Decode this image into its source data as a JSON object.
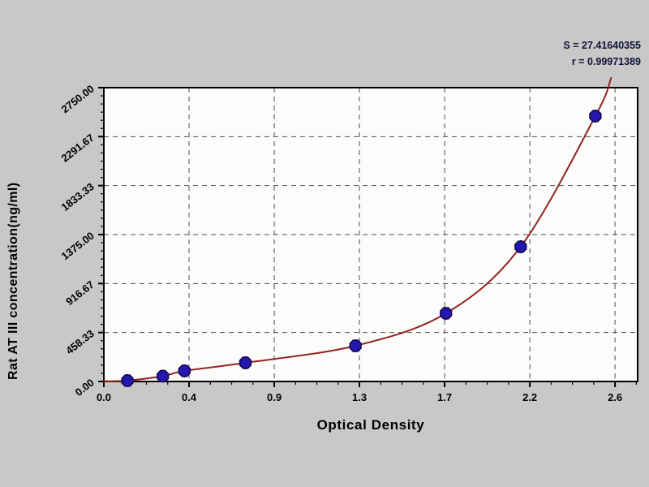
{
  "chart_data": {
    "type": "scatter",
    "title": "",
    "xlabel": "Optical Density",
    "ylabel": "Rat AT III concentration(ng/ml)",
    "annotation": {
      "s_line": "S = 27.41640355",
      "r_line": "r = 0.99971389"
    },
    "xlim": [
      0,
      2.715
    ],
    "ylim": [
      0,
      2750
    ],
    "x_ticks": {
      "values": [
        0,
        0.43333,
        0.86667,
        1.3,
        1.73333,
        2.16667,
        2.6
      ],
      "labels": [
        "0.0",
        "0.4",
        "0.9",
        "1.3",
        "1.7",
        "2.2",
        "2.6"
      ],
      "minor_divisions": 4
    },
    "y_ticks": {
      "values": [
        0,
        458.33,
        916.67,
        1375,
        1833.33,
        2291.67,
        2750
      ],
      "labels": [
        "0.00",
        "458.33",
        "916.67",
        "1375.00",
        "1833.33",
        "2291.67",
        "2750.00"
      ],
      "minor_divisions": 6
    },
    "grid": true,
    "legend": false,
    "points": [
      [
        0.12,
        8
      ],
      [
        0.3,
        50
      ],
      [
        0.41,
        99
      ],
      [
        0.72,
        175
      ],
      [
        1.28,
        334
      ],
      [
        1.74,
        638
      ],
      [
        2.12,
        1261
      ],
      [
        2.5,
        2484
      ]
    ],
    "curve_points": [
      [
        0.0,
        2
      ],
      [
        0.12,
        8
      ],
      [
        0.3,
        50
      ],
      [
        0.41,
        99
      ],
      [
        0.72,
        175
      ],
      [
        1.28,
        334
      ],
      [
        1.74,
        638
      ],
      [
        2.12,
        1261
      ],
      [
        2.5,
        2484
      ],
      [
        2.58,
        2841
      ]
    ],
    "colors": {
      "curve": "#942323",
      "marker": "#2517ad",
      "marker_edge": "#120750",
      "grid": "#4d4d4d",
      "frame": "#000000",
      "plot_bg": "#fcfcfa",
      "page_bg": "#c8c8c8",
      "text": "#000000",
      "annotation": "#12123a"
    }
  }
}
